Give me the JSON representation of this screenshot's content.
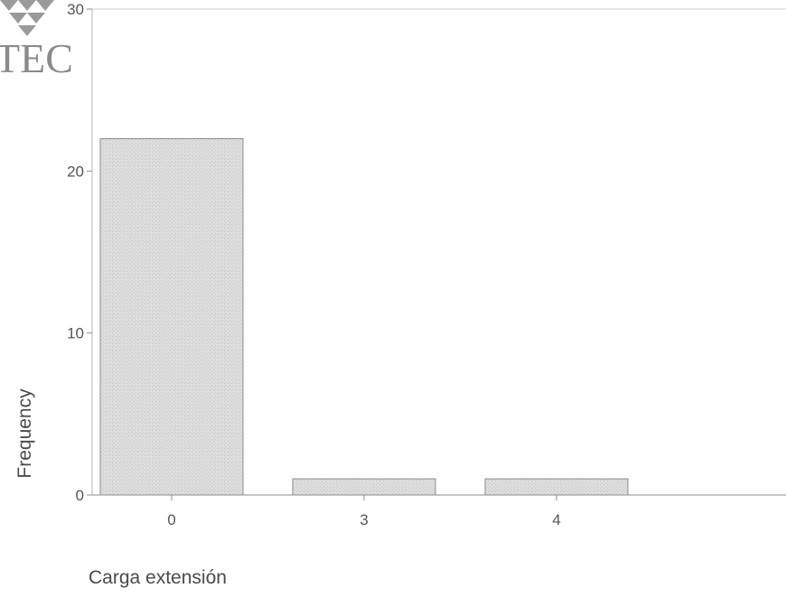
{
  "logo": {
    "text": "TEC"
  },
  "chart_data": {
    "type": "bar",
    "title": "",
    "xlabel": "Carga extensión",
    "ylabel": "Frequency",
    "categories": [
      "0",
      "3",
      "4"
    ],
    "values": [
      22,
      1,
      1
    ],
    "ylim": [
      0,
      30
    ],
    "yticks": [
      {
        "value": 0,
        "label": "0"
      },
      {
        "value": 10,
        "label": "10"
      },
      {
        "value": 20,
        "label": "20"
      },
      {
        "value": 30,
        "label": "30"
      }
    ],
    "grid": false,
    "bar_color": "#d9d9d9",
    "bar_edge_color": "#8c8c8c"
  }
}
